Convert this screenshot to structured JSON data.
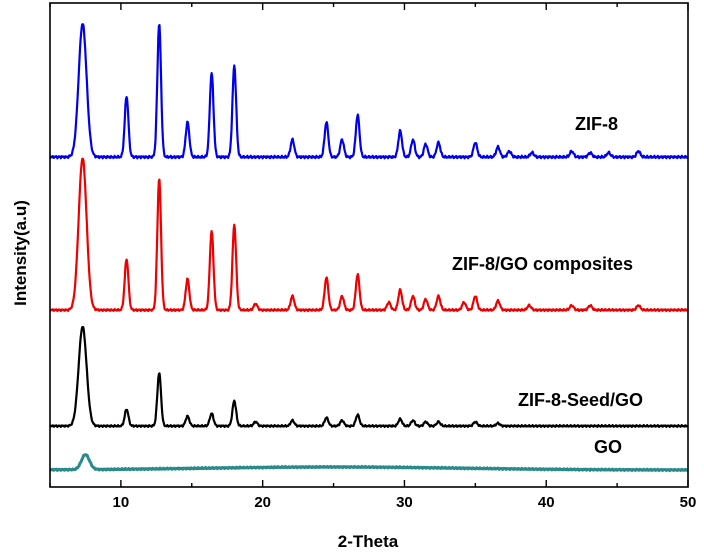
{
  "chart_data": {
    "type": "line",
    "title": "",
    "xlabel": "2-Theta",
    "ylabel": "Intensity(a.u)",
    "xlim": [
      5,
      50
    ],
    "xticks": [
      10,
      20,
      30,
      40,
      50
    ],
    "yticks": "none",
    "grid": false,
    "legend": "none (series labelled directly on plot)",
    "series": [
      {
        "name": "ZIF-8",
        "color": "#0000ee",
        "baseline": 0.06,
        "peaks": [
          [
            7.3,
            0.92
          ],
          [
            10.4,
            0.42
          ],
          [
            12.7,
            0.92
          ],
          [
            14.7,
            0.24
          ],
          [
            16.4,
            0.58
          ],
          [
            18.0,
            0.63
          ],
          [
            22.1,
            0.12
          ],
          [
            24.5,
            0.24
          ],
          [
            25.6,
            0.12
          ],
          [
            26.7,
            0.29
          ],
          [
            29.7,
            0.18
          ],
          [
            30.6,
            0.12
          ],
          [
            31.5,
            0.09
          ],
          [
            32.4,
            0.1
          ],
          [
            35.0,
            0.1
          ],
          [
            36.6,
            0.07
          ],
          [
            37.4,
            0.04
          ],
          [
            39.0,
            0.03
          ],
          [
            41.8,
            0.04
          ],
          [
            43.1,
            0.03
          ],
          [
            44.4,
            0.03
          ],
          [
            46.5,
            0.04
          ]
        ]
      },
      {
        "name": "ZIF-8/GO composites",
        "color": "#ee0000",
        "baseline": 0.045,
        "peaks": [
          [
            7.3,
            0.98
          ],
          [
            10.4,
            0.33
          ],
          [
            12.7,
            0.85
          ],
          [
            14.7,
            0.2
          ],
          [
            16.4,
            0.51
          ],
          [
            18.0,
            0.55
          ],
          [
            19.5,
            0.04
          ],
          [
            22.1,
            0.09
          ],
          [
            24.5,
            0.21
          ],
          [
            25.6,
            0.09
          ],
          [
            26.7,
            0.23
          ],
          [
            28.9,
            0.05
          ],
          [
            29.7,
            0.13
          ],
          [
            30.6,
            0.09
          ],
          [
            31.5,
            0.07
          ],
          [
            32.4,
            0.09
          ],
          [
            34.2,
            0.05
          ],
          [
            35.0,
            0.09
          ],
          [
            36.6,
            0.06
          ],
          [
            38.8,
            0.03
          ],
          [
            41.8,
            0.03
          ],
          [
            43.1,
            0.03
          ],
          [
            46.5,
            0.03
          ]
        ]
      },
      {
        "name": "ZIF-8-Seed/GO",
        "color": "#000000",
        "baseline": 0.045,
        "peaks": [
          [
            7.3,
            0.71
          ],
          [
            10.4,
            0.12
          ],
          [
            12.7,
            0.38
          ],
          [
            14.7,
            0.07
          ],
          [
            16.4,
            0.09
          ],
          [
            18.0,
            0.18
          ],
          [
            19.5,
            0.03
          ],
          [
            22.1,
            0.04
          ],
          [
            24.5,
            0.06
          ],
          [
            25.6,
            0.04
          ],
          [
            26.7,
            0.08
          ],
          [
            29.7,
            0.05
          ],
          [
            30.6,
            0.04
          ],
          [
            31.5,
            0.03
          ],
          [
            32.4,
            0.03
          ],
          [
            35.0,
            0.03
          ],
          [
            36.6,
            0.02
          ]
        ]
      },
      {
        "name": "GO",
        "color": "#2a8a8a",
        "baseline": 0.03,
        "peaks": [
          [
            7.5,
            0.1
          ]
        ],
        "humps": [
          [
            25.0,
            0.02
          ]
        ]
      }
    ]
  }
}
